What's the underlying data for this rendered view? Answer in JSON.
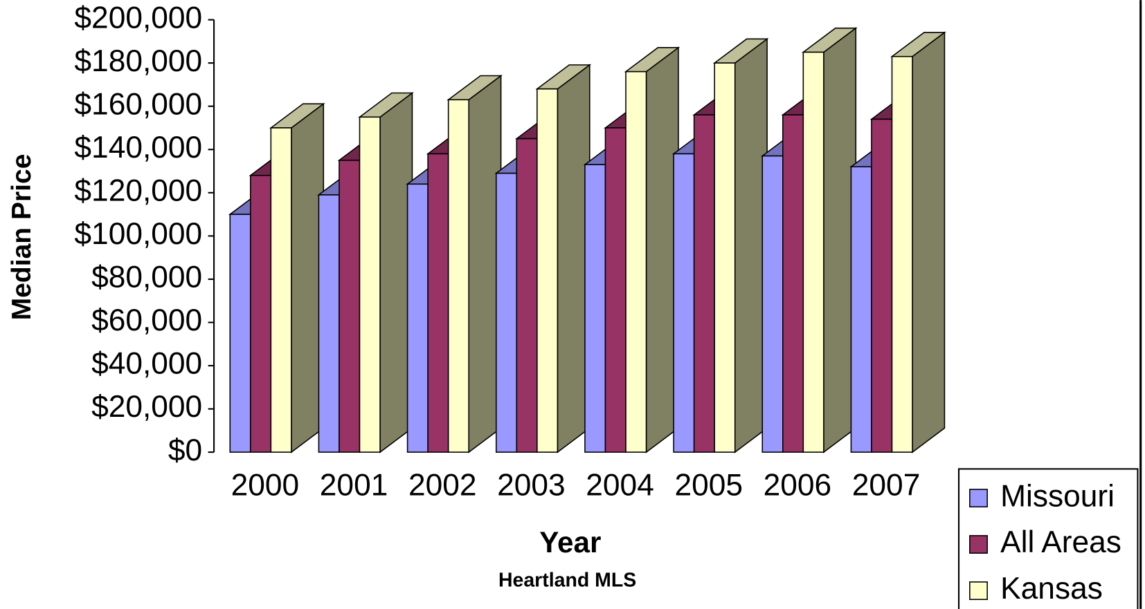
{
  "chart_data": {
    "type": "bar3d",
    "x_label": "Year",
    "y_label": "Median Price",
    "caption": "Heartland MLS",
    "categories": [
      "2000",
      "2001",
      "2002",
      "2003",
      "2004",
      "2005",
      "2006",
      "2007"
    ],
    "series": [
      {
        "name": "Missouri",
        "color": "#9999ff",
        "values": [
          110000,
          119000,
          124000,
          129000,
          133000,
          138000,
          137000,
          132000
        ]
      },
      {
        "name": "All Areas",
        "color": "#993366",
        "values": [
          128000,
          135000,
          138000,
          145000,
          150000,
          156000,
          156000,
          154000
        ]
      },
      {
        "name": "Kansas",
        "color": "#ffffcc",
        "values": [
          150000,
          155000,
          163000,
          168000,
          176000,
          180000,
          185000,
          183000
        ]
      }
    ],
    "ylim": [
      0,
      200000
    ],
    "yticks": [
      {
        "value": 0,
        "label": "$0"
      },
      {
        "value": 20000,
        "label": "$20,000"
      },
      {
        "value": 40000,
        "label": "$40,000"
      },
      {
        "value": 60000,
        "label": "$60,000"
      },
      {
        "value": 80000,
        "label": "$80,000"
      },
      {
        "value": 100000,
        "label": "$100,000"
      },
      {
        "value": 120000,
        "label": "$120,000"
      },
      {
        "value": 140000,
        "label": "$140,000"
      },
      {
        "value": 160000,
        "label": "$160,000"
      },
      {
        "value": 180000,
        "label": "$180,000"
      },
      {
        "value": 200000,
        "label": "$200,000"
      }
    ],
    "side_color": "#808062",
    "grid": false,
    "legend": "bottom-right"
  }
}
